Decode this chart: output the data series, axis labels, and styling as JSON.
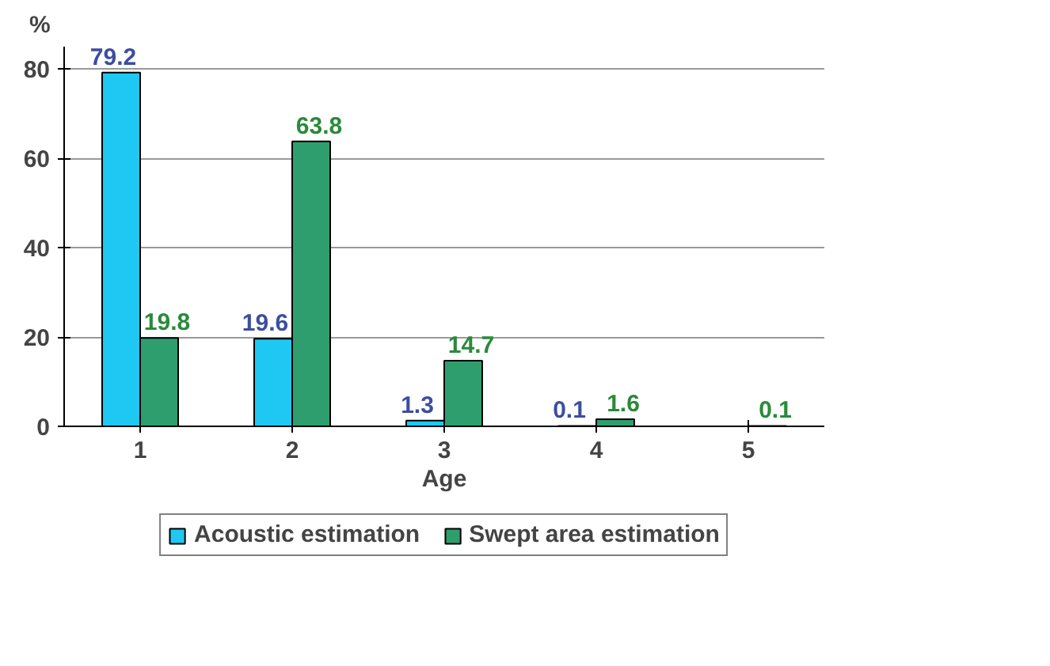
{
  "chart_data": {
    "type": "bar",
    "ylabel": "%",
    "xlabel": "Age",
    "categories": [
      "1",
      "2",
      "3",
      "4",
      "5"
    ],
    "series": [
      {
        "name": "Acoustic estimation",
        "color": "#1ec8f2",
        "values": [
          79.2,
          19.6,
          1.3,
          0.1,
          null
        ]
      },
      {
        "name": "Swept area estimation",
        "color": "#2e9e6e",
        "values": [
          19.8,
          63.8,
          14.7,
          1.6,
          0.1
        ]
      }
    ],
    "ylim": [
      0,
      85
    ],
    "yticks": [
      0,
      20,
      40,
      60,
      80
    ],
    "grid": "y",
    "legend": "bottom",
    "data_labels": true
  }
}
